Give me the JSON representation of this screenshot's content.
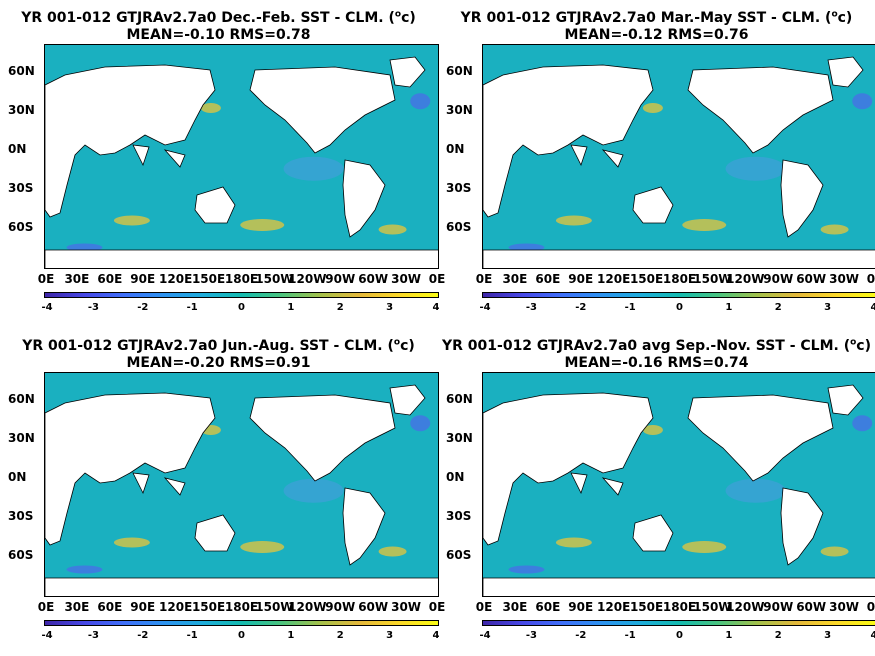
{
  "panels": [
    {
      "title_prefix": "YR 001-012 GTJRAv2.7a0  Dec.-Feb. SST - CLM. (",
      "title_unit": "o",
      "title_suffix": "c)",
      "stats": "MEAN=-0.10   RMS=0.78"
    },
    {
      "title_prefix": "YR 001-012 GTJRAv2.7a0 Mar.-May SST - CLM. (",
      "title_unit": "o",
      "title_suffix": "c)",
      "stats": "MEAN=-0.12   RMS=0.76"
    },
    {
      "title_prefix": "YR 001-012 GTJRAv2.7a0 Jun.-Aug. SST - CLM. (",
      "title_unit": "o",
      "title_suffix": "c)",
      "stats": "MEAN=-0.20   RMS=0.91"
    },
    {
      "title_prefix": "YR 001-012 GTJRAv2.7a0 avg Sep.-Nov. SST - CLM. (",
      "title_unit": "o",
      "title_suffix": "c)",
      "stats": "MEAN=-0.16   RMS=0.74"
    }
  ],
  "lat_labels": [
    "60N",
    "30N",
    "0N",
    "30S",
    "60S"
  ],
  "lon_labels": [
    "0E",
    "30E",
    "60E",
    "90E",
    "120E",
    "150E",
    "180E",
    "150W",
    "120W",
    "90W",
    "60W",
    "30W",
    "0E"
  ],
  "colorbar": {
    "ticks": [
      "-4",
      "-3",
      "-2",
      "-1",
      "0",
      "1",
      "2",
      "3",
      "4"
    ],
    "colors": [
      "#3e26a8",
      "#4748e6",
      "#3f6ff9",
      "#2d92f0",
      "#1eacdb",
      "#14bbb0",
      "#4ac47f",
      "#a4c14b",
      "#e4b83b",
      "#fbd82a",
      "#f9fb14"
    ]
  },
  "ocean_colors": {
    "base": "#1ab0c0",
    "warm": "#e8c53a",
    "cool": "#4a6ee8",
    "land": "#ffffff"
  }
}
